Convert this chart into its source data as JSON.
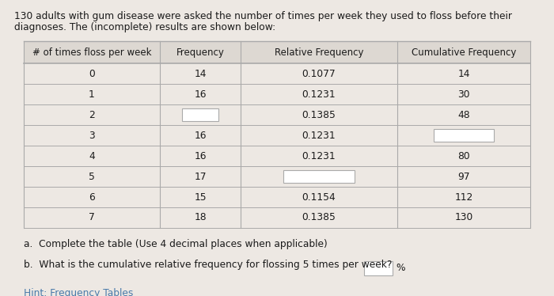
{
  "title_line1": "130 adults with gum disease were asked the number of times per week they used to floss before their",
  "title_line2": "diagnoses. The (incomplete) results are shown below:",
  "col_headers": [
    "# of times floss per week",
    "Frequency",
    "Relative Frequency",
    "Cumulative Frequency"
  ],
  "rows": [
    {
      "times": "0",
      "freq": "14",
      "rel_freq": "0.1077",
      "cum_freq": "14",
      "freq_blank": false,
      "rel_blank": false,
      "cum_blank": false
    },
    {
      "times": "1",
      "freq": "16",
      "rel_freq": "0.1231",
      "cum_freq": "30",
      "freq_blank": false,
      "rel_blank": false,
      "cum_blank": false
    },
    {
      "times": "2",
      "freq": "",
      "rel_freq": "0.1385",
      "cum_freq": "48",
      "freq_blank": true,
      "rel_blank": false,
      "cum_blank": false
    },
    {
      "times": "3",
      "freq": "16",
      "rel_freq": "0.1231",
      "cum_freq": "",
      "freq_blank": false,
      "rel_blank": false,
      "cum_blank": true
    },
    {
      "times": "4",
      "freq": "16",
      "rel_freq": "0.1231",
      "cum_freq": "80",
      "freq_blank": false,
      "rel_blank": false,
      "cum_blank": false
    },
    {
      "times": "5",
      "freq": "17",
      "rel_freq": "",
      "cum_freq": "97",
      "freq_blank": false,
      "rel_blank": true,
      "cum_blank": false
    },
    {
      "times": "6",
      "freq": "15",
      "rel_freq": "0.1154",
      "cum_freq": "112",
      "freq_blank": false,
      "rel_blank": false,
      "cum_blank": false
    },
    {
      "times": "7",
      "freq": "18",
      "rel_freq": "0.1385",
      "cum_freq": "130",
      "freq_blank": false,
      "rel_blank": false,
      "cum_blank": false
    }
  ],
  "footnote_a": "a.  Complete the table (Use 4 decimal places when applicable)",
  "footnote_b": "b.  What is the cumulative relative frequency for flossing 5 times per week?",
  "hint": "Hint: Frequency Tables",
  "bg_color": "#ede8e3",
  "table_bg": "#ede8e3",
  "header_bg": "#ddd8d2",
  "border_color": "#aaaaaa",
  "text_color": "#1a1a1a",
  "hint_color": "#4a7aaa",
  "title_fontsize": 8.8,
  "header_fontsize": 8.5,
  "table_fontsize": 8.8,
  "footnote_fontsize": 8.8
}
